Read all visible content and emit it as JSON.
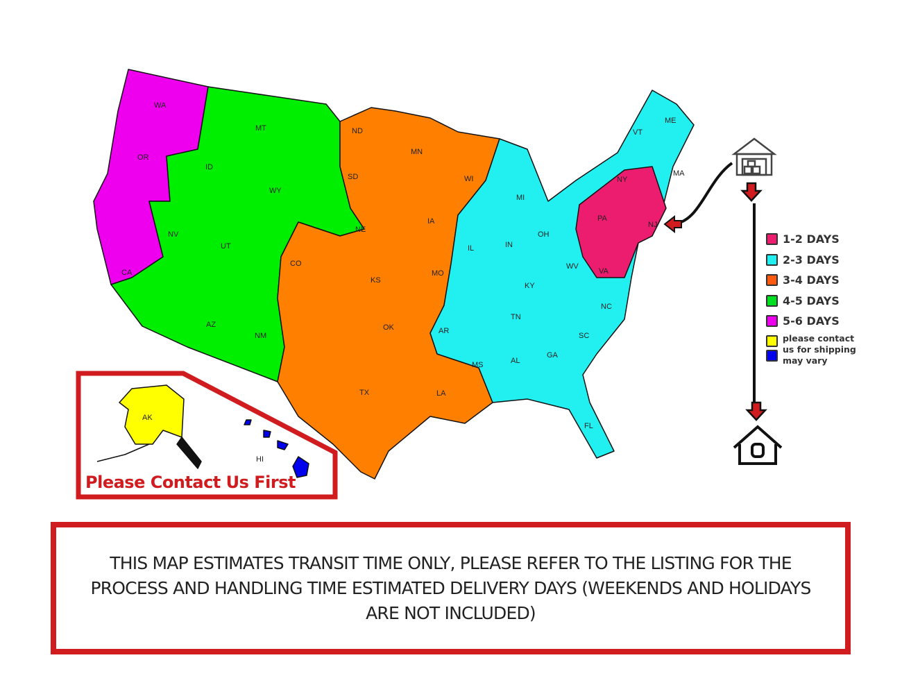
{
  "legend": {
    "items": [
      {
        "label": "1-2 DAYS",
        "color": "#ec1c6e"
      },
      {
        "label": "2-3 DAYS",
        "color": "#22f0f0"
      },
      {
        "label": "3-4 DAYS",
        "color": "#ff7f00"
      },
      {
        "label": "4-5 DAYS",
        "color": "#00ee00"
      },
      {
        "label": "5-6 DAYS",
        "color": "#ee00ee"
      }
    ],
    "note": {
      "label": "please contact us for shipping may vary",
      "colors": [
        "#ffff00",
        "#0000ee"
      ]
    }
  },
  "states": {
    "WA": "WA",
    "OR": "OR",
    "CA": "CA",
    "NV": "NV",
    "ID": "ID",
    "MT": "MT",
    "WY": "WY",
    "UT": "UT",
    "AZ": "AZ",
    "NM": "NM",
    "CO": "CO",
    "ND": "ND",
    "SD": "SD",
    "NE": "NE",
    "KS": "KS",
    "OK": "OK",
    "TX": "TX",
    "MN": "MN",
    "IA": "IA",
    "MO": "MO",
    "AR": "AR",
    "LA": "LA",
    "WI": "WI",
    "IL": "IL",
    "MS": "MS",
    "MI": "MI",
    "IN": "IN",
    "OH": "OH",
    "KY": "KY",
    "TN": "TN",
    "AL": "AL",
    "GA": "GA",
    "FL": "FL",
    "SC": "SC",
    "NC": "NC",
    "VA": "VA",
    "WV": "WV",
    "PA": "PA",
    "NY": "NY",
    "VT": "VT",
    "ME": "ME",
    "MA": "MA",
    "NJ": "NJ",
    "AK": "AK",
    "HI": "HI"
  },
  "inset": {
    "contact_text": "Please Contact Us First",
    "border_color": "#d01c1f"
  },
  "icons": {
    "origin": "warehouse-icon",
    "destination": "house-icon",
    "arrow": "red-down-arrow-icon"
  },
  "footer": {
    "text": "THIS MAP ESTIMATES TRANSIT TIME ONLY, PLEASE REFER TO THE LISTING FOR THE PROCESS AND HANDLING TIME ESTIMATED DELIVERY DAYS (WEEKENDS AND HOLIDAYS ARE NOT INCLUDED)"
  }
}
